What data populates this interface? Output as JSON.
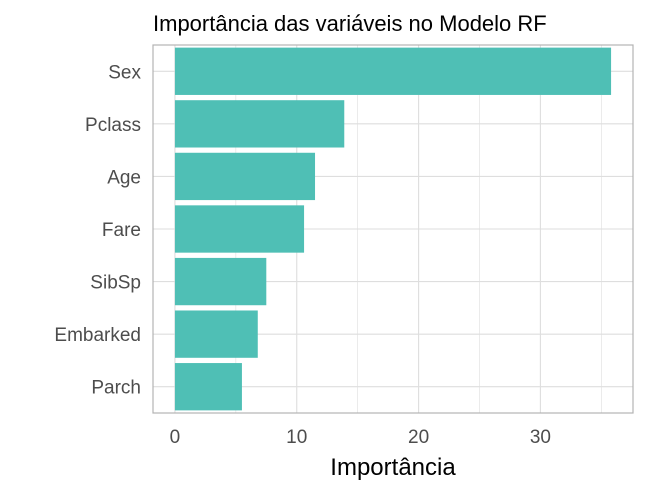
{
  "chart_data": {
    "type": "bar",
    "orientation": "horizontal",
    "title": "Importância das variáveis no Modelo RF",
    "xlabel": "Importância",
    "ylabel": "",
    "categories": [
      "Sex",
      "Pclass",
      "Age",
      "Fare",
      "SibSp",
      "Embarked",
      "Parch"
    ],
    "values": [
      35.8,
      13.9,
      11.5,
      10.6,
      7.5,
      6.8,
      5.5
    ],
    "xlim": [
      -1.8,
      37.6
    ],
    "xticks": [
      0,
      10,
      20,
      30
    ],
    "xtick_labels": [
      "0",
      "10",
      "20",
      "30"
    ],
    "grid": true,
    "bar_color": "#4fbfb5",
    "grid_color": "#dedede",
    "panel_border_color": "#b3b3b3"
  }
}
